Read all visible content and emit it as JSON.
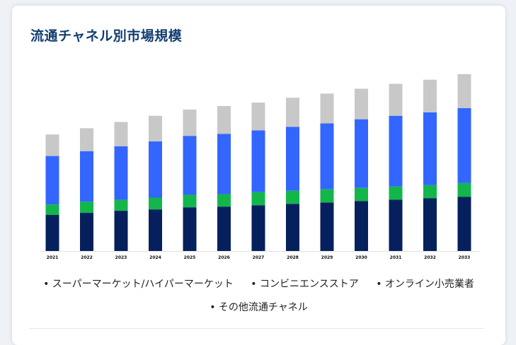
{
  "chart_data": {
    "type": "bar",
    "stacked": true,
    "title": "流通チャネル別市場規模",
    "categories": [
      "2021",
      "2022",
      "2023",
      "2024",
      "2025",
      "2026",
      "2027",
      "2028",
      "2029",
      "2030",
      "2031",
      "2032",
      "2033"
    ],
    "series": [
      {
        "name": "スーパーマーケット/ハイパーマーケット",
        "color": "#06205e",
        "values": [
          52,
          55,
          58,
          60,
          63,
          64,
          66,
          68,
          70,
          72,
          74,
          76,
          78
        ]
      },
      {
        "name": "コンビニエンスストア",
        "color": "#13b64b",
        "values": [
          15,
          16,
          16,
          17,
          18,
          18,
          19,
          19,
          19,
          19,
          19,
          19,
          20
        ]
      },
      {
        "name": "オンライン小売業者",
        "color": "#3366ff",
        "values": [
          70,
          73,
          77,
          81,
          85,
          87,
          89,
          92,
          95,
          99,
          102,
          105,
          108
        ]
      },
      {
        "name": "その他流通チャネル",
        "color": "#c8c8c8",
        "values": [
          31,
          33,
          35,
          37,
          38,
          40,
          40,
          42,
          43,
          44,
          46,
          47,
          49
        ]
      }
    ],
    "ylim": [
      0,
      260
    ],
    "grid": false,
    "legend_position": "bottom",
    "xlabel": "",
    "ylabel": ""
  }
}
